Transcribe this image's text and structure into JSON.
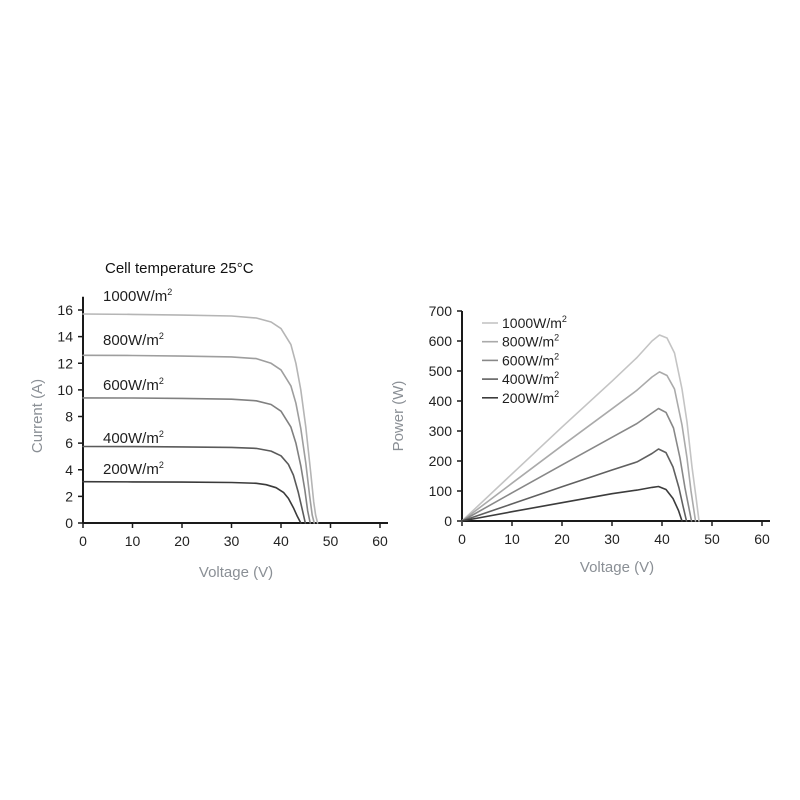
{
  "chart_data": [
    {
      "type": "line",
      "title": "Cell temperature 25°C",
      "xlabel": "Voltage (V)",
      "ylabel": "Current (A)",
      "xlim": [
        0,
        62
      ],
      "ylim": [
        0,
        17
      ],
      "xticks": [
        0,
        10,
        20,
        30,
        40,
        50,
        60
      ],
      "yticks": [
        0,
        2,
        4,
        6,
        8,
        10,
        12,
        14,
        16
      ],
      "grid": false,
      "series": [
        {
          "name": "1000W/m²",
          "label_main": "1000W/m",
          "label_sup": "2",
          "color": "#b5b5b5",
          "x": [
            0,
            10,
            20,
            30,
            35,
            38,
            40,
            42,
            43,
            44,
            45,
            46,
            46.6,
            47,
            47.4
          ],
          "y": [
            15.7,
            15.67,
            15.62,
            15.55,
            15.4,
            15.1,
            14.6,
            13.4,
            12.0,
            10.0,
            7.2,
            3.8,
            1.6,
            0.6,
            0
          ]
        },
        {
          "name": "800W/m²",
          "label_main": "800W/m",
          "label_sup": "2",
          "color": "#9e9e9e",
          "x": [
            0,
            10,
            20,
            30,
            35,
            38,
            40,
            42,
            43,
            44,
            45,
            45.8,
            46.3,
            46.7
          ],
          "y": [
            12.6,
            12.58,
            12.54,
            12.48,
            12.35,
            12.0,
            11.5,
            10.3,
            9.0,
            7.1,
            4.5,
            2.0,
            0.6,
            0
          ]
        },
        {
          "name": "600W/m²",
          "label_main": "600W/m",
          "label_sup": "2",
          "color": "#808080",
          "x": [
            0,
            10,
            20,
            30,
            35,
            38,
            40,
            42,
            43,
            44,
            44.8,
            45.4,
            45.9
          ],
          "y": [
            9.4,
            9.39,
            9.36,
            9.3,
            9.18,
            8.9,
            8.4,
            7.2,
            6.0,
            4.3,
            2.5,
            0.9,
            0
          ]
        },
        {
          "name": "400W/m²",
          "label_main": "400W/m",
          "label_sup": "2",
          "color": "#5a5a5a",
          "x": [
            0,
            10,
            20,
            30,
            35,
            38,
            40,
            41.5,
            42.5,
            43.5,
            44.3,
            44.9
          ],
          "y": [
            5.75,
            5.74,
            5.72,
            5.68,
            5.6,
            5.4,
            5.05,
            4.4,
            3.6,
            2.3,
            1.0,
            0
          ]
        },
        {
          "name": "200W/m²",
          "label_main": "200W/m",
          "label_sup": "2",
          "color": "#3a3a3a",
          "x": [
            0,
            10,
            20,
            30,
            35,
            37,
            39,
            40.5,
            41.5,
            42.5,
            43.3,
            44.0
          ],
          "y": [
            3.1,
            3.09,
            3.07,
            3.04,
            2.98,
            2.88,
            2.65,
            2.3,
            1.85,
            1.15,
            0.5,
            0
          ]
        }
      ]
    },
    {
      "type": "line",
      "title": "",
      "xlabel": "Voltage (V)",
      "ylabel": "Power (W)",
      "xlim": [
        0,
        62
      ],
      "ylim": [
        0,
        700
      ],
      "xticks": [
        0,
        10,
        20,
        30,
        40,
        50,
        60
      ],
      "yticks": [
        0,
        100,
        200,
        300,
        400,
        500,
        600,
        700
      ],
      "grid": false,
      "legend_position": "top-left",
      "series": [
        {
          "name": "1000W/m²",
          "label_main": "1000W/m",
          "label_sup": "2",
          "color": "#c4c4c4",
          "x": [
            0,
            10,
            20,
            30,
            35,
            38,
            39.5,
            41,
            42.5,
            44,
            45,
            46,
            46.8,
            47.4
          ],
          "y": [
            0,
            157,
            313,
            466,
            545,
            600,
            620,
            610,
            560,
            440,
            330,
            180,
            80,
            0
          ]
        },
        {
          "name": "800W/m²",
          "label_main": "800W/m",
          "label_sup": "2",
          "color": "#aaaaaa",
          "x": [
            0,
            10,
            20,
            30,
            35,
            38,
            39.5,
            41,
            42.5,
            44,
            45,
            45.8,
            46.7
          ],
          "y": [
            0,
            126,
            251,
            374,
            436,
            480,
            497,
            485,
            440,
            320,
            210,
            100,
            0
          ]
        },
        {
          "name": "600W/m²",
          "label_main": "600W/m",
          "label_sup": "2",
          "color": "#888888",
          "x": [
            0,
            10,
            20,
            30,
            35,
            38,
            39.3,
            40.8,
            42.3,
            43.6,
            44.6,
            45.9
          ],
          "y": [
            0,
            94,
            187,
            279,
            325,
            360,
            375,
            362,
            310,
            210,
            110,
            0
          ]
        },
        {
          "name": "400W/m²",
          "label_main": "400W/m",
          "label_sup": "2",
          "color": "#606060",
          "x": [
            0,
            10,
            20,
            30,
            35,
            38,
            39.3,
            40.8,
            42.2,
            43.4,
            44.2,
            44.9
          ],
          "y": [
            0,
            57,
            114,
            170,
            197,
            225,
            240,
            228,
            180,
            110,
            50,
            0
          ]
        },
        {
          "name": "200W/m²",
          "label_main": "200W/m",
          "label_sup": "2",
          "color": "#3c3c3c",
          "x": [
            0,
            10,
            20,
            30,
            35,
            38,
            39.3,
            40.8,
            42.2,
            43.3,
            44.0
          ],
          "y": [
            0,
            31,
            61,
            91,
            103,
            112,
            115,
            105,
            75,
            35,
            0
          ]
        }
      ]
    }
  ]
}
